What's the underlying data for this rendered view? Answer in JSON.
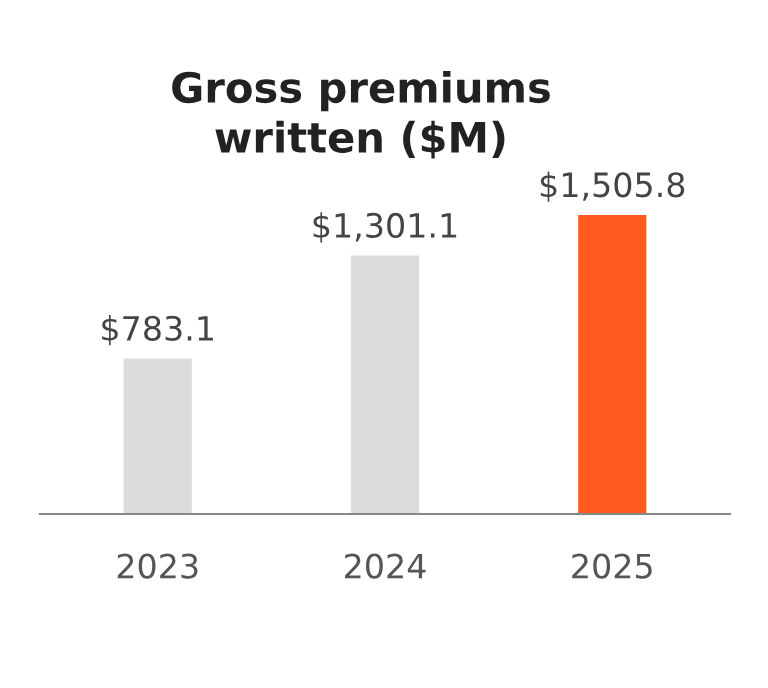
{
  "chart_data": {
    "type": "bar",
    "title": "Gross premiums\nwritten ($M)",
    "categories": [
      "2023",
      "2024",
      "2025"
    ],
    "values": [
      783.1,
      1301.1,
      1505.8
    ],
    "colors": [
      "#dcdcdc",
      "#dcdcdc",
      "#ff5a1f"
    ],
    "value_labels": [
      "$783.1",
      "$1,301.1",
      "$1,505.8"
    ],
    "grid": false,
    "legend": false
  }
}
